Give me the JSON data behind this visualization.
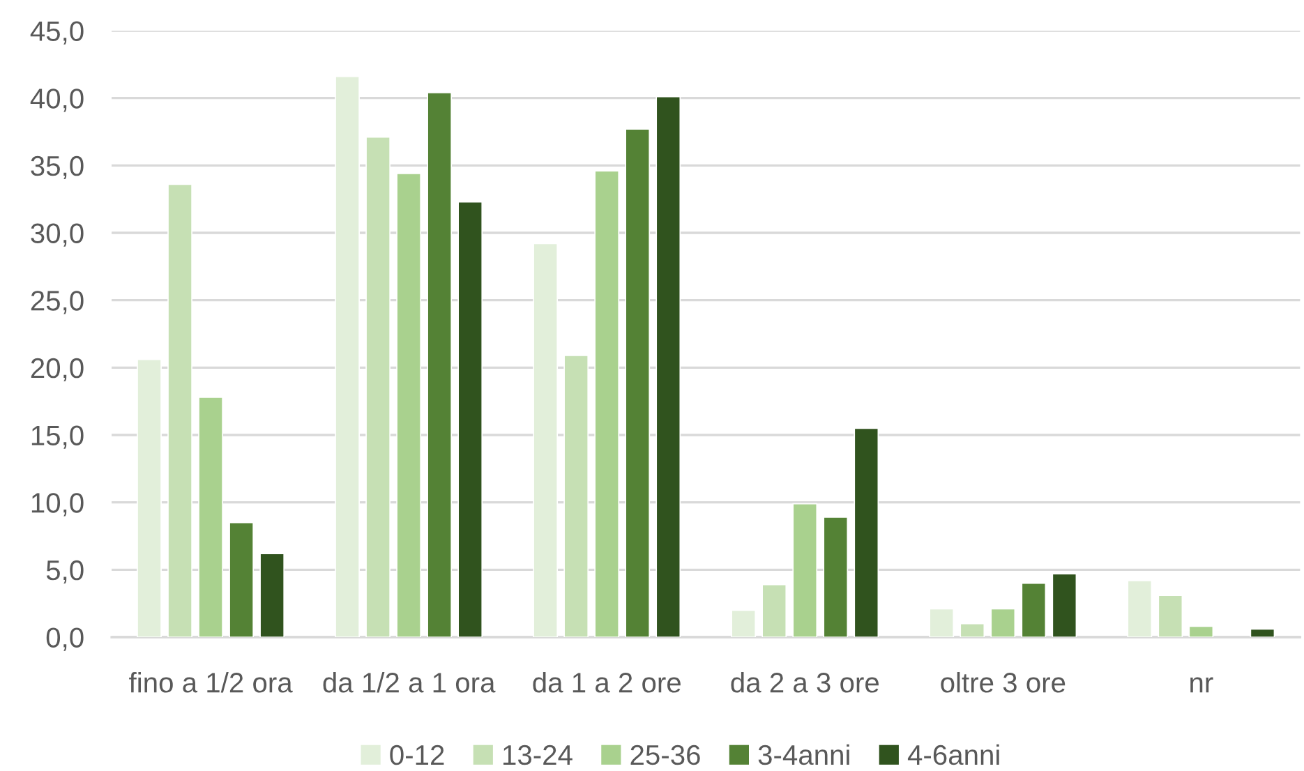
{
  "chart_data": {
    "type": "bar",
    "categories": [
      "fino a 1/2 ora",
      "da 1/2 a 1 ora",
      "da 1 a 2 ore",
      "da 2 a 3 ore",
      "oltre 3 ore",
      "nr"
    ],
    "series": [
      {
        "name": "0-12",
        "color": "#e2efda",
        "values": [
          20.6,
          41.6,
          29.2,
          2.0,
          2.1,
          4.2
        ]
      },
      {
        "name": "13-24",
        "color": "#c6e0b4",
        "values": [
          33.6,
          37.1,
          20.9,
          3.9,
          1.0,
          3.1
        ]
      },
      {
        "name": "25-36",
        "color": "#a9d18e",
        "values": [
          17.8,
          34.4,
          34.6,
          9.9,
          2.1,
          0.8
        ]
      },
      {
        "name": "3-4anni",
        "color": "#548235",
        "values": [
          8.5,
          40.4,
          37.7,
          8.9,
          4.0,
          null
        ]
      },
      {
        "name": "4-6anni",
        "color": "#30531e",
        "values": [
          6.2,
          32.3,
          40.1,
          15.5,
          4.7,
          0.6
        ]
      }
    ],
    "ylim": [
      0,
      45
    ],
    "yticks": [
      {
        "value": 0,
        "label": "0,0"
      },
      {
        "value": 5,
        "label": "5,0"
      },
      {
        "value": 10,
        "label": "10,0"
      },
      {
        "value": 15,
        "label": "15,0"
      },
      {
        "value": 20,
        "label": "20,0"
      },
      {
        "value": 25,
        "label": "25,0"
      },
      {
        "value": 30,
        "label": "30,0"
      },
      {
        "value": 35,
        "label": "35,0"
      },
      {
        "value": 40,
        "label": "40,0"
      },
      {
        "value": 45,
        "label": "45,0"
      }
    ],
    "grid": "y",
    "legend": "bottom"
  }
}
